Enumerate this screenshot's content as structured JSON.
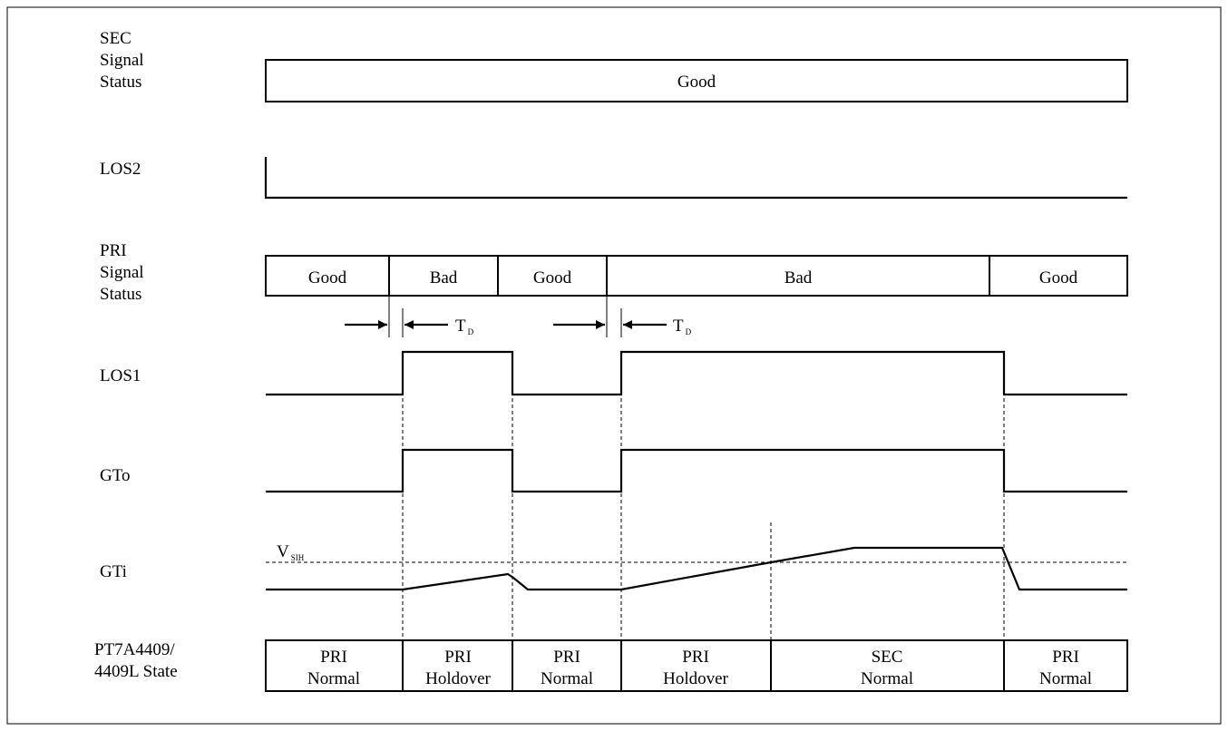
{
  "signals": {
    "sec_status": [
      "SEC",
      "Signal",
      "Status"
    ],
    "los2": "LOS2",
    "pri_status": [
      "PRI",
      "Signal",
      "Status"
    ],
    "los1": "LOS1",
    "gto": "GTo",
    "gti": "GTi",
    "state": [
      "PT7A4409/",
      "4409L State"
    ]
  },
  "sec_bar": {
    "label": "Good"
  },
  "pri_bar": {
    "segments": [
      "Good",
      "Bad",
      "Good",
      "Bad",
      "Good"
    ]
  },
  "delay": {
    "main": "T",
    "sub": "D"
  },
  "threshold": {
    "main": "V",
    "sub": "SIH"
  },
  "state_bar": {
    "cells": [
      {
        "line1": "PRI",
        "line2": "Normal"
      },
      {
        "line1": "PRI",
        "line2": "Holdover"
      },
      {
        "line1": "PRI",
        "line2": "Normal"
      },
      {
        "line1": "PRI",
        "line2": "Holdover"
      },
      {
        "line1": "SEC",
        "line2": "Normal"
      },
      {
        "line1": "PRI",
        "line2": "Normal"
      }
    ]
  }
}
